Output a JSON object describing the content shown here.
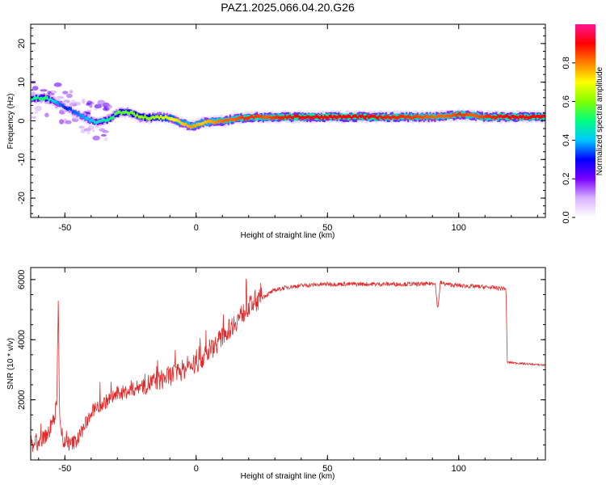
{
  "figure": {
    "title": "PAZ1.2025.066.04.20.G26"
  },
  "colors": {
    "snr_line": "#e32a2a",
    "colormap": [
      "#ffffff",
      "#d9b3ff",
      "#7a00ff",
      "#0000ff",
      "#00c8ff",
      "#00ff80",
      "#80ff00",
      "#ffff00",
      "#ff8000",
      "#ff0000",
      "#ff1493"
    ]
  },
  "chart_data": [
    {
      "type": "heatmap",
      "title": "",
      "xlabel": "Height of straight line (km)",
      "ylabel": "Frequency (Hz)",
      "xlim": [
        -63,
        133
      ],
      "ylim": [
        -25,
        25
      ],
      "xticks": [
        -50,
        0,
        50,
        100
      ],
      "yticks": [
        -20,
        -10,
        0,
        10,
        20
      ],
      "colorbar": {
        "label": "Normalized spectral amplitude",
        "range": [
          0,
          1
        ],
        "ticks": [
          "0.0",
          "0.2",
          "0.4",
          "0.6",
          "0.8"
        ]
      },
      "ridge": {
        "x": [
          -62,
          -58,
          -54,
          -50,
          -46,
          -42,
          -38,
          -34,
          -30,
          -26,
          -22,
          -18,
          -14,
          -10,
          -6,
          -2,
          2,
          6,
          10,
          14,
          18,
          22,
          26,
          30,
          40,
          60,
          80,
          90,
          95,
          100,
          105,
          110,
          120,
          133
        ],
        "frequency": [
          5.8,
          6.0,
          5.0,
          3.5,
          2.0,
          0.5,
          -0.5,
          0.3,
          2.0,
          2.2,
          1.0,
          0.8,
          1.0,
          0.8,
          -0.5,
          -1.5,
          -0.5,
          -0.2,
          0.0,
          0.5,
          0.8,
          1.0,
          0.8,
          1.0,
          1.0,
          1.0,
          1.0,
          1.0,
          1.2,
          1.6,
          1.4,
          1.0,
          1.0,
          1.0
        ],
        "amplitude": [
          0.45,
          0.5,
          0.35,
          0.25,
          0.3,
          0.35,
          0.4,
          0.45,
          0.55,
          0.55,
          0.6,
          0.6,
          0.65,
          0.7,
          0.75,
          0.8,
          0.75,
          0.8,
          0.85,
          0.85,
          0.9,
          0.9,
          0.85,
          0.9,
          0.95,
          0.95,
          0.9,
          0.85,
          0.85,
          0.9,
          0.85,
          0.9,
          0.95,
          0.95
        ]
      }
    },
    {
      "type": "line",
      "title": "",
      "xlabel": "Height of straight line (km)",
      "ylabel": "SNR (10 * v/v)",
      "xlim": [
        -63,
        133
      ],
      "ylim": [
        0,
        6400
      ],
      "xticks": [
        -50,
        0,
        50,
        100
      ],
      "yticks": [
        2000,
        4000,
        6000
      ],
      "series": [
        {
          "trend": {
            "x": [
              -63,
              -60,
              -56,
              -54,
              -53,
              -52.5,
              -52,
              -51,
              -48,
              -45,
              -42,
              -40,
              -35,
              -30,
              -25,
              -20,
              -15,
              -10,
              -5,
              0,
              5,
              10,
              15,
              20,
              25,
              30,
              35,
              40,
              50,
              60,
              70,
              80,
              88,
              91,
              92,
              93,
              95,
              100,
              110,
              118,
              118.5,
              125,
              133
            ],
            "y": [
              400,
              600,
              900,
              1400,
              2000,
              5300,
              1600,
              600,
              500,
              700,
              1200,
              1600,
              1900,
              2200,
              2300,
              2500,
              2600,
              2800,
              3000,
              3200,
              3600,
              4100,
              4600,
              5100,
              5400,
              5650,
              5750,
              5800,
              5850,
              5850,
              5850,
              5850,
              5850,
              5900,
              5000,
              5900,
              5850,
              5800,
              5750,
              5700,
              3250,
              3200,
              3150
            ]
          }
        }
      ]
    }
  ]
}
